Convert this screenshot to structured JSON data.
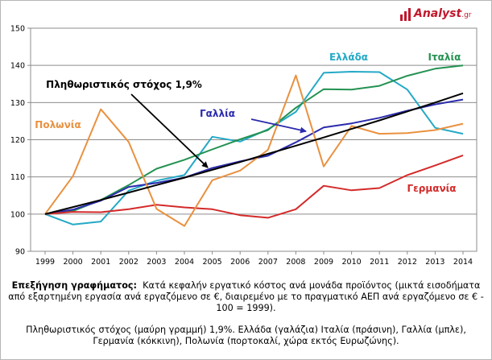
{
  "logo": {
    "text": "Analyst",
    "suffix": ".gr"
  },
  "chart_data": {
    "type": "line",
    "x": [
      1999,
      2000,
      2001,
      2002,
      2003,
      2004,
      2005,
      2006,
      2007,
      2008,
      2009,
      2010,
      2011,
      2012,
      2013,
      2014
    ],
    "ylim": [
      90,
      150
    ],
    "yticks": [
      90,
      100,
      110,
      120,
      130,
      140,
      150
    ],
    "grid": "horizontal",
    "series": [
      {
        "name": "Ελλάδα",
        "color": "#24a9c6",
        "values": [
          100,
          97.2,
          98,
          106.3,
          109,
          110.5,
          120.8,
          119.5,
          122.8,
          127.5,
          138,
          138.3,
          138.2,
          133.5,
          123.2,
          121.6
        ]
      },
      {
        "name": "Ιταλία",
        "color": "#249252",
        "values": [
          100,
          100.8,
          103.8,
          107.8,
          112.2,
          114.6,
          117.4,
          120.1,
          122.6,
          128.6,
          133.6,
          133.5,
          134.5,
          137.2,
          139.1,
          140
        ]
      },
      {
        "name": "Γαλλία",
        "color": "#2b2bad",
        "values": [
          100,
          101.2,
          103.6,
          107.3,
          108.4,
          109.8,
          112.4,
          114.2,
          115.7,
          119.3,
          123.3,
          124.4,
          125.9,
          127.8,
          129.5,
          130.8
        ]
      },
      {
        "name": "Γερμανία",
        "color": "#d42a2a",
        "values": [
          100,
          100.6,
          100.5,
          101.3,
          102.5,
          101.8,
          101.3,
          99.7,
          99,
          101.3,
          107.6,
          106.4,
          107,
          110.5,
          113.1,
          115.8
        ]
      },
      {
        "name": "Πολωνία",
        "color": "#e99140",
        "values": [
          100,
          110.2,
          128.2,
          119.4,
          101.4,
          96.8,
          109.1,
          111.7,
          117.3,
          137.3,
          112.8,
          123.7,
          121.6,
          121.8,
          122.6,
          124.3
        ]
      },
      {
        "name": "Πληθωριστικός στόχος 1,9%",
        "color": "#000000",
        "values": [
          100,
          101.9,
          103.8,
          105.8,
          107.8,
          109.8,
          111.9,
          114,
          116.2,
          118.4,
          120.6,
          122.9,
          125.2,
          127.6,
          130,
          132.5
        ]
      }
    ],
    "annotations": [
      {
        "text": "Ελλάδα",
        "color": "#24a9c6"
      },
      {
        "text": "Ιταλία",
        "color": "#249252"
      },
      {
        "text": "Πληθωριστικός στόχος  1,9%",
        "color": "#000000"
      },
      {
        "text": "Γαλλία",
        "color": "#2b2bad"
      },
      {
        "text": "Πολωνία",
        "color": "#e99140"
      },
      {
        "text": "Γερμανία",
        "color": "#d42a2a"
      }
    ]
  },
  "caption": {
    "heading": "Επεξήγηση γραφήματος:",
    "body": "Κατά κεφαλήν εργατικό κόστος ανά μονάδα προϊόντος (μικτά εισοδήματα από εξαρτημένη εργασία ανά εργαζόμενο σε €, διαιρεμένο με το πραγματικό ΑΕΠ ανά εργαζόμενο σε € - 100 = 1999).",
    "legend": "Πληθωριστικός στόχος (μαύρη γραμμή) 1,9%. Ελλάδα (γαλάζια) Ιταλία (πράσινη), Γαλλία (μπλε), Γερμανία (κόκκινη), Πολωνία (πορτοκαλί, χώρα εκτός Ευρωζώνης)."
  }
}
